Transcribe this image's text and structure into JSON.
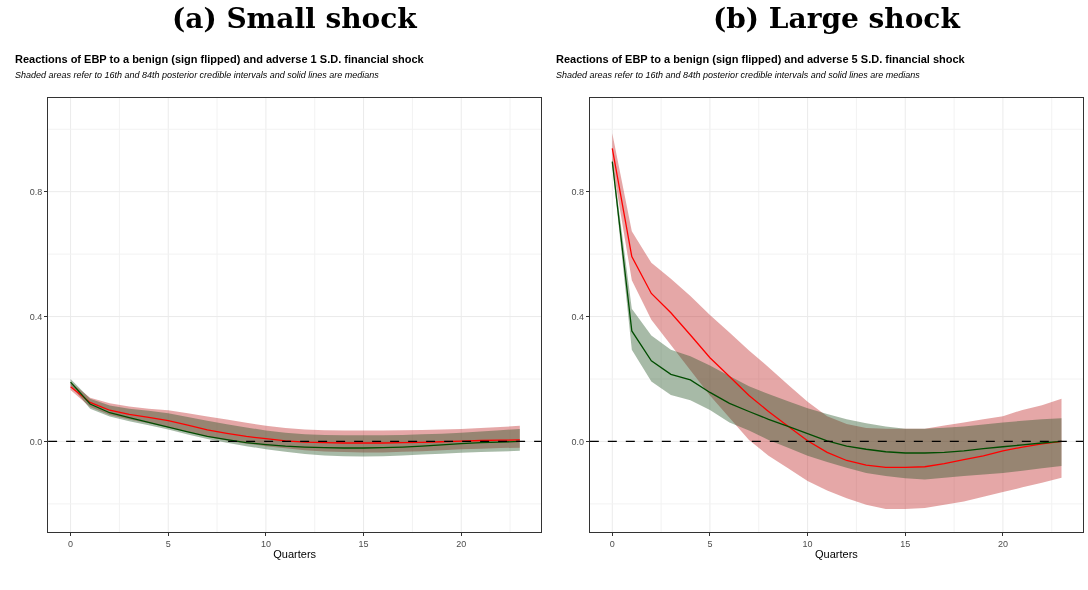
{
  "chart_data": [
    {
      "type": "line",
      "title": "(a) Small shock",
      "subtitle": "Reactions of EBP to a benign (sign flipped) and adverse 1 S.D. financial shock",
      "annotations": [
        "Shaded areas refer to 16th and 84th posterior credible intervals and solid lines are medians"
      ],
      "xlabel": "Quarters",
      "x": [
        0,
        1,
        2,
        3,
        4,
        5,
        6,
        7,
        8,
        9,
        10,
        11,
        12,
        13,
        14,
        15,
        16,
        17,
        18,
        19,
        20,
        21,
        22,
        23
      ],
      "series": [
        {
          "color": "#ff0000",
          "values": [
            0.175,
            0.125,
            0.1,
            0.087,
            0.077,
            0.067,
            0.052,
            0.037,
            0.026,
            0.016,
            0.009,
            0.002,
            -0.002,
            -0.004,
            -0.005,
            -0.005,
            -0.005,
            -0.004,
            -0.003,
            -0.001,
            0.001,
            0.003,
            0.004,
            0.005
          ],
          "lower": [
            0.165,
            0.11,
            0.085,
            0.07,
            0.058,
            0.045,
            0.03,
            0.015,
            0.003,
            -0.007,
            -0.015,
            -0.022,
            -0.028,
            -0.032,
            -0.034,
            -0.035,
            -0.035,
            -0.033,
            -0.031,
            -0.028,
            -0.025,
            -0.023,
            -0.021,
            -0.02
          ],
          "upper": [
            0.19,
            0.14,
            0.122,
            0.112,
            0.105,
            0.1,
            0.09,
            0.08,
            0.07,
            0.06,
            0.05,
            0.043,
            0.038,
            0.036,
            0.035,
            0.035,
            0.035,
            0.036,
            0.037,
            0.038,
            0.04,
            0.043,
            0.046,
            0.05
          ]
        },
        {
          "color": "#004d00",
          "values": [
            0.19,
            0.12,
            0.092,
            0.076,
            0.061,
            0.046,
            0.031,
            0.016,
            0.006,
            -0.004,
            -0.01,
            -0.015,
            -0.018,
            -0.02,
            -0.021,
            -0.021,
            -0.02,
            -0.018,
            -0.015,
            -0.011,
            -0.007,
            -0.004,
            -0.002,
            0.0
          ],
          "lower": [
            0.18,
            0.105,
            0.08,
            0.065,
            0.052,
            0.038,
            0.022,
            0.008,
            -0.004,
            -0.015,
            -0.025,
            -0.033,
            -0.04,
            -0.045,
            -0.047,
            -0.048,
            -0.047,
            -0.045,
            -0.042,
            -0.039,
            -0.036,
            -0.034,
            -0.032,
            -0.03
          ],
          "upper": [
            0.2,
            0.137,
            0.115,
            0.105,
            0.098,
            0.09,
            0.078,
            0.066,
            0.055,
            0.045,
            0.035,
            0.028,
            0.023,
            0.021,
            0.02,
            0.02,
            0.02,
            0.021,
            0.023,
            0.025,
            0.028,
            0.032,
            0.036,
            0.04
          ]
        }
      ],
      "xlim": [
        -1.15,
        24.1
      ],
      "xticks": [
        0,
        5,
        10,
        15,
        20
      ],
      "ylim": [
        -0.29,
        1.1
      ],
      "yticks": [
        {
          "value": 0,
          "label": "0.0"
        },
        {
          "value": 0.4,
          "label": "0.4"
        },
        {
          "value": 0.8,
          "label": "0.8"
        }
      ],
      "ref_lines": [
        {
          "axis": "y",
          "value": 0,
          "color": "#000000",
          "line_style": "dashed"
        }
      ],
      "grid": true,
      "line_style": "solid"
    },
    {
      "type": "line",
      "title": "(b) Large shock",
      "subtitle": "Reactions of EBP to a benign (sign flipped) and adverse 5 S.D. financial shock",
      "annotations": [
        "Shaded areas refer to 16th and 84th posterior credible intervals and solid lines are medians"
      ],
      "xlabel": "Quarters",
      "x": [
        0,
        1,
        2,
        3,
        4,
        5,
        6,
        7,
        8,
        9,
        10,
        11,
        12,
        13,
        14,
        15,
        16,
        17,
        18,
        19,
        20,
        21,
        22,
        23
      ],
      "series": [
        {
          "color": "#ff0000",
          "values": [
            0.939,
            0.592,
            0.474,
            0.412,
            0.341,
            0.268,
            0.208,
            0.147,
            0.096,
            0.049,
            0.002,
            -0.035,
            -0.061,
            -0.076,
            -0.083,
            -0.083,
            -0.081,
            -0.071,
            -0.058,
            -0.046,
            -0.03,
            -0.018,
            -0.008,
            0.0
          ],
          "lower": [
            0.89,
            0.516,
            0.39,
            0.309,
            0.228,
            0.147,
            0.076,
            0.005,
            -0.046,
            -0.086,
            -0.127,
            -0.157,
            -0.182,
            -0.203,
            -0.216,
            -0.216,
            -0.213,
            -0.203,
            -0.192,
            -0.177,
            -0.162,
            -0.147,
            -0.132,
            -0.116
          ],
          "upper": [
            0.987,
            0.673,
            0.572,
            0.521,
            0.466,
            0.405,
            0.349,
            0.291,
            0.238,
            0.182,
            0.127,
            0.081,
            0.056,
            0.043,
            0.041,
            0.041,
            0.041,
            0.051,
            0.061,
            0.071,
            0.081,
            0.101,
            0.116,
            0.137
          ]
        },
        {
          "color": "#004d00",
          "values": [
            0.896,
            0.354,
            0.258,
            0.215,
            0.197,
            0.157,
            0.122,
            0.096,
            0.071,
            0.048,
            0.025,
            0.002,
            -0.015,
            -0.025,
            -0.033,
            -0.037,
            -0.037,
            -0.035,
            -0.03,
            -0.023,
            -0.017,
            -0.011,
            -0.005,
            0.0
          ],
          "lower": [
            0.886,
            0.294,
            0.192,
            0.149,
            0.132,
            0.101,
            0.061,
            0.035,
            0.005,
            -0.02,
            -0.046,
            -0.066,
            -0.084,
            -0.101,
            -0.111,
            -0.118,
            -0.122,
            -0.116,
            -0.111,
            -0.106,
            -0.101,
            -0.094,
            -0.086,
            -0.079
          ],
          "upper": [
            0.906,
            0.425,
            0.339,
            0.294,
            0.273,
            0.243,
            0.21,
            0.177,
            0.152,
            0.129,
            0.106,
            0.088,
            0.071,
            0.058,
            0.048,
            0.041,
            0.041,
            0.044,
            0.048,
            0.054,
            0.061,
            0.066,
            0.071,
            0.074
          ]
        }
      ],
      "xlim": [
        -1.15,
        24.1
      ],
      "xticks": [
        0,
        5,
        10,
        15,
        20
      ],
      "ylim": [
        -0.29,
        1.1
      ],
      "yticks": [
        {
          "value": 0,
          "label": "0.0"
        },
        {
          "value": 0.4,
          "label": "0.4"
        },
        {
          "value": 0.8,
          "label": "0.8"
        }
      ],
      "ref_lines": [
        {
          "axis": "y",
          "value": 0,
          "color": "#000000",
          "line_style": "dashed"
        }
      ],
      "grid": true,
      "line_style": "solid"
    }
  ]
}
